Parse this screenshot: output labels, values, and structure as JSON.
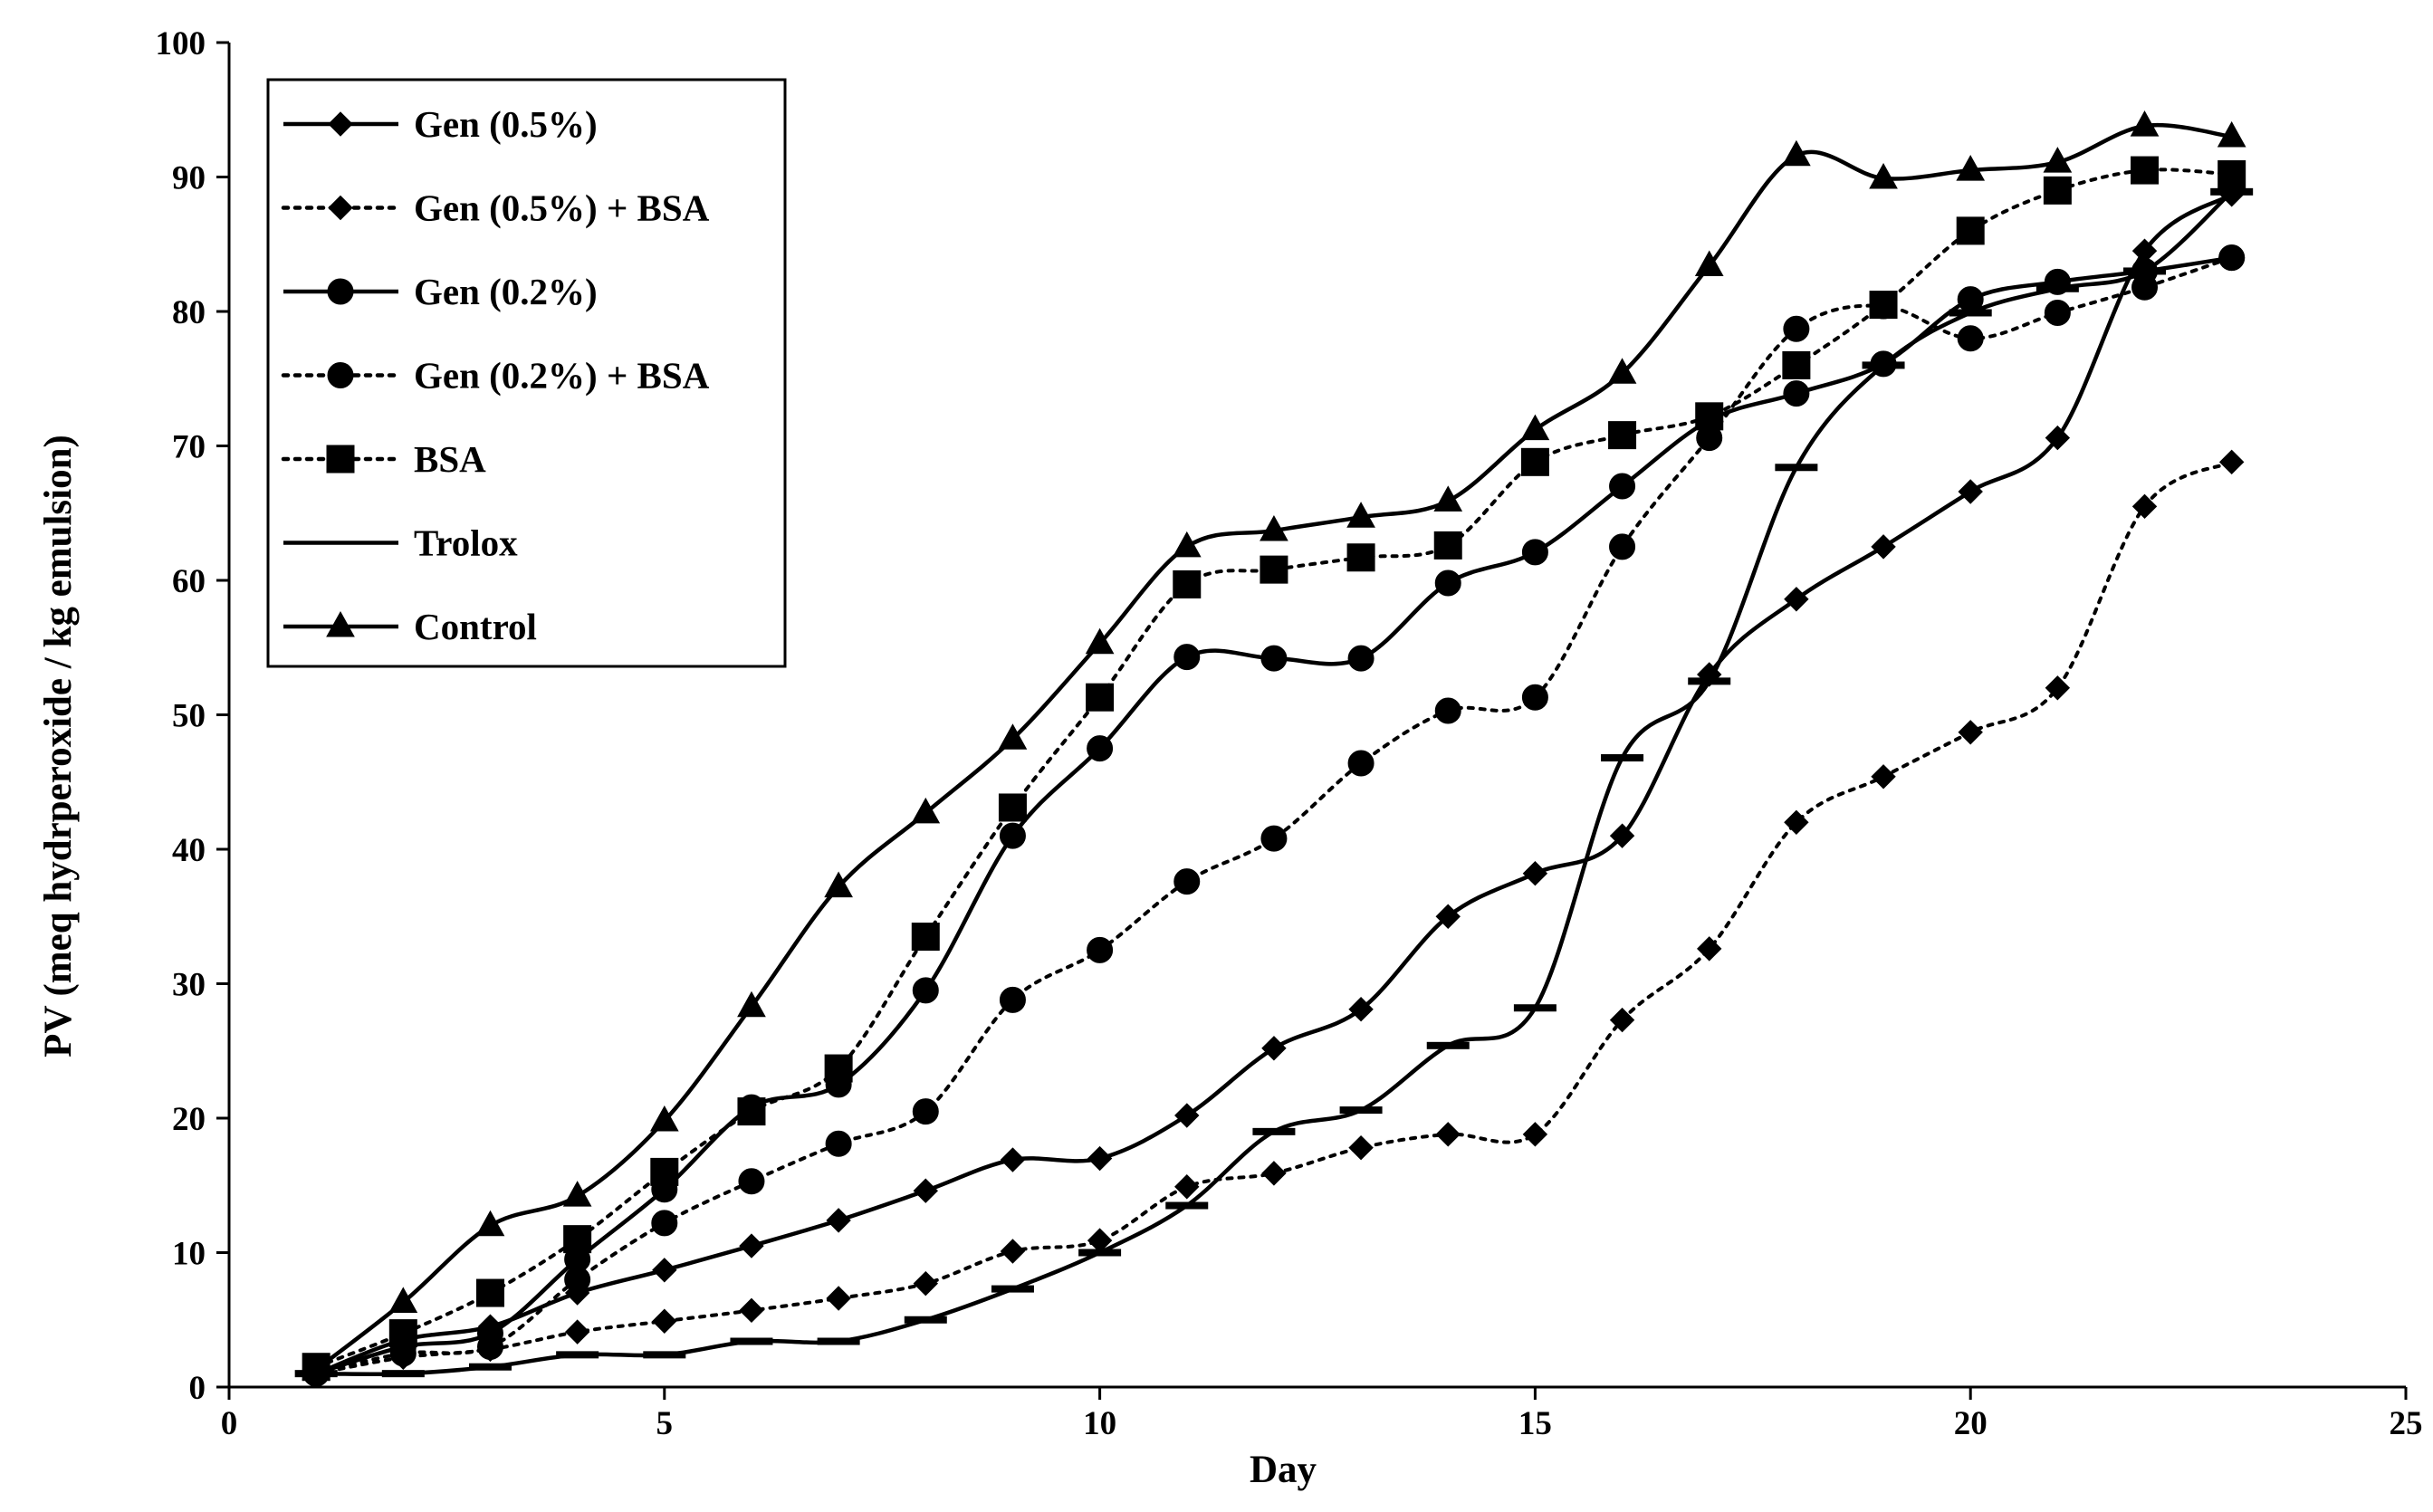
{
  "chart_data": {
    "type": "line",
    "title": "",
    "xlabel": "Day",
    "ylabel": "PV (meq hydrperoxide  / kg emulsion)",
    "xlim": [
      0,
      25
    ],
    "ylim": [
      0,
      100
    ],
    "xticks": [
      0,
      5,
      10,
      15,
      20,
      25
    ],
    "yticks": [
      0,
      10,
      20,
      30,
      40,
      50,
      60,
      70,
      80,
      90,
      100
    ],
    "grid": false,
    "legend_position": "top-left",
    "series": [
      {
        "name": "Gen (0.5%)",
        "marker": "diamond",
        "line": "solid",
        "x": [
          1,
          2,
          3,
          4,
          5,
          6,
          7,
          8,
          9,
          10,
          11,
          12,
          13,
          14,
          15,
          16,
          17,
          18,
          19,
          20,
          21,
          22,
          23
        ],
        "y": [
          1,
          3.5,
          4.5,
          7,
          8.7,
          10.5,
          12.4,
          14.6,
          16.9,
          17,
          20.2,
          25.2,
          28.1,
          35,
          38.2,
          41,
          53,
          58.6,
          62.5,
          66.6,
          70.6,
          84.5,
          88.7
        ]
      },
      {
        "name": "Gen (0.5%) + BSA",
        "marker": "diamond",
        "line": "dotted",
        "x": [
          1,
          2,
          3,
          4,
          5,
          6,
          7,
          8,
          9,
          10,
          11,
          12,
          13,
          14,
          15,
          16,
          17,
          18,
          19,
          20,
          21,
          22,
          23
        ],
        "y": [
          1,
          2.2,
          2.8,
          4.1,
          4.9,
          5.7,
          6.6,
          7.7,
          10.1,
          10.9,
          14.9,
          15.9,
          17.8,
          18.8,
          18.8,
          27.3,
          32.6,
          42,
          45.4,
          48.7,
          52,
          65.5,
          68.8
        ]
      },
      {
        "name": "Gen (0.2%)",
        "marker": "circle",
        "line": "solid",
        "x": [
          1,
          2,
          3,
          4,
          5,
          6,
          7,
          8,
          9,
          10,
          11,
          12,
          13,
          14,
          15,
          16,
          17,
          18,
          19,
          20,
          21,
          22,
          23
        ],
        "y": [
          1,
          3,
          4,
          9.5,
          14.7,
          20.8,
          22.5,
          29.5,
          41,
          47.5,
          54.3,
          54.2,
          54.2,
          59.8,
          62.1,
          67,
          71.9,
          73.9,
          76.1,
          80.9,
          82.2,
          83,
          84
        ]
      },
      {
        "name": "Gen (0.2%) + BSA",
        "marker": "circle",
        "line": "dotted",
        "x": [
          1,
          2,
          3,
          4,
          5,
          6,
          7,
          8,
          9,
          10,
          11,
          12,
          13,
          14,
          15,
          16,
          17,
          18,
          19,
          20,
          21,
          22,
          23
        ],
        "y": [
          1,
          2.5,
          3,
          8,
          12.2,
          15.3,
          18.1,
          20.5,
          28.8,
          32.5,
          37.6,
          40.8,
          46.4,
          50.3,
          51.3,
          62.5,
          70.6,
          78.7,
          80.4,
          78,
          79.9,
          81.8,
          84
        ]
      },
      {
        "name": "BSA",
        "marker": "square",
        "line": "dotted",
        "x": [
          1,
          2,
          3,
          4,
          5,
          6,
          7,
          8,
          9,
          10,
          11,
          12,
          13,
          14,
          15,
          16,
          17,
          18,
          19,
          20,
          21,
          22,
          23
        ],
        "y": [
          1.5,
          4,
          7,
          11,
          16,
          20.5,
          23.7,
          33.5,
          43.1,
          51.3,
          59.7,
          60.8,
          61.7,
          62.6,
          68.8,
          70.8,
          72.2,
          76,
          80.5,
          86,
          89,
          90.5,
          90.2
        ]
      },
      {
        "name": "Trolox",
        "marker": "dash",
        "line": "solid",
        "x": [
          1,
          2,
          3,
          4,
          5,
          6,
          7,
          8,
          9,
          10,
          11,
          12,
          13,
          14,
          15,
          16,
          17,
          18,
          19,
          20,
          21,
          22,
          23
        ],
        "y": [
          1,
          1,
          1.5,
          2.4,
          2.4,
          3.4,
          3.4,
          5,
          7.3,
          10,
          13.5,
          19,
          20.6,
          25.4,
          28.2,
          46.8,
          52.5,
          68.4,
          76,
          79.9,
          81.7,
          83,
          88.9
        ]
      },
      {
        "name": "Control",
        "marker": "triangle",
        "line": "solid",
        "x": [
          1,
          2,
          3,
          4,
          5,
          6,
          7,
          8,
          9,
          10,
          11,
          12,
          13,
          14,
          15,
          16,
          17,
          18,
          19,
          20,
          21,
          22,
          23
        ],
        "y": [
          1.3,
          6.3,
          12,
          14.2,
          19.8,
          28.3,
          37.2,
          42.7,
          48.2,
          55.3,
          62.5,
          63.7,
          64.7,
          65.9,
          71.2,
          75.4,
          83.4,
          91.6,
          89.9,
          90.5,
          91.1,
          93.8,
          93
        ]
      }
    ]
  }
}
